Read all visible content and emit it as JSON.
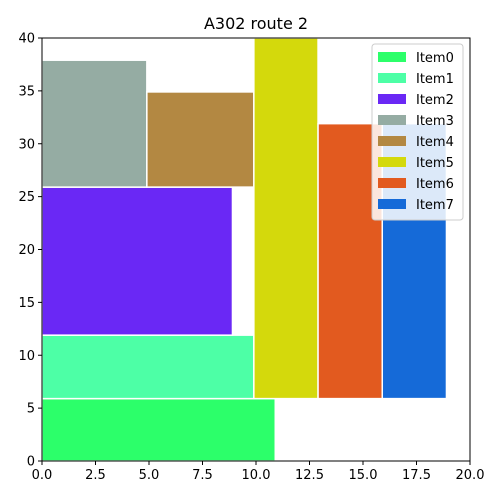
{
  "chart_data": {
    "type": "bar",
    "title": "A302 route 2",
    "xlabel": "",
    "ylabel": "",
    "xlim": [
      0,
      20
    ],
    "ylim": [
      0,
      40
    ],
    "xticks": [
      "0.0",
      "2.5",
      "5.0",
      "7.5",
      "10.0",
      "12.5",
      "15.0",
      "17.5",
      "20.0"
    ],
    "yticks": [
      "0",
      "5",
      "10",
      "15",
      "20",
      "25",
      "30",
      "35",
      "40"
    ],
    "grid": false,
    "legend_position": "top-right",
    "items": [
      {
        "name": "Item0",
        "color": "#2cff6a",
        "x0": 0.0,
        "x1": 10.9,
        "y0": 0.0,
        "y1": 5.9
      },
      {
        "name": "Item1",
        "color": "#4dffa6",
        "x0": 0.0,
        "x1": 9.9,
        "y0": 5.9,
        "y1": 11.9
      },
      {
        "name": "Item2",
        "color": "#6a28f5",
        "x0": 0.0,
        "x1": 8.9,
        "y0": 11.9,
        "y1": 25.9
      },
      {
        "name": "Item3",
        "color": "#95aca3",
        "x0": 0.0,
        "x1": 4.9,
        "y0": 25.9,
        "y1": 37.9
      },
      {
        "name": "Item4",
        "color": "#b38842",
        "x0": 4.9,
        "x1": 9.9,
        "y0": 25.9,
        "y1": 34.9
      },
      {
        "name": "Item5",
        "color": "#d4d90c",
        "x0": 9.9,
        "x1": 12.9,
        "y0": 5.9,
        "y1": 40.0
      },
      {
        "name": "Item6",
        "color": "#e25a1f",
        "x0": 12.9,
        "x1": 15.9,
        "y0": 5.9,
        "y1": 31.9
      },
      {
        "name": "Item7",
        "color": "#156ad8",
        "x0": 15.9,
        "x1": 18.9,
        "y0": 5.9,
        "y1": 31.9
      }
    ]
  }
}
